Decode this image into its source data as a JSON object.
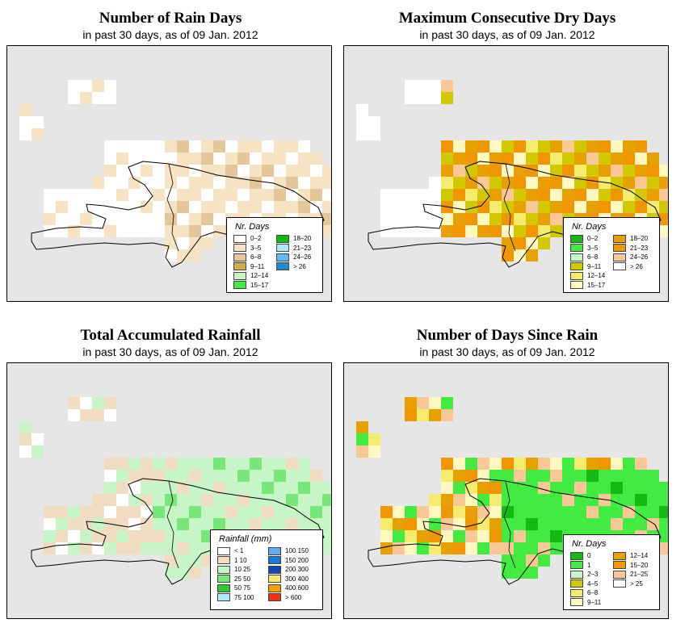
{
  "panels": [
    {
      "id": "rain-days",
      "title": "Number of Rain Days",
      "subtitle": "in past 30 days, as of  09 Jan. 2012",
      "legend_title": "Nr. Days",
      "legend": [
        {
          "label": "0–2",
          "color": "#ffffff"
        },
        {
          "label": "3–5",
          "color": "#f5e3c4"
        },
        {
          "label": "6–8",
          "color": "#e3c79b"
        },
        {
          "label": "9–11",
          "color": "#d2aa4a"
        },
        {
          "label": "12–14",
          "color": "#c8f5c8"
        },
        {
          "label": "15–17",
          "color": "#3cf03c"
        },
        {
          "label": "18–20",
          "color": "#12b912"
        },
        {
          "label": "21–23",
          "color": "#aeeaf5"
        },
        {
          "label": "24–26",
          "color": "#5fb9f0"
        },
        {
          "label": "> 26",
          "color": "#1e8ccc"
        }
      ]
    },
    {
      "id": "dry-days",
      "title": "Maximum Consecutive Dry Days",
      "subtitle": "in past 30 days, as of  09 Jan. 2012",
      "legend_title": "Nr. Days",
      "legend": [
        {
          "label": "0–2",
          "color": "#14b914"
        },
        {
          "label": "3–5",
          "color": "#41eb41"
        },
        {
          "label": "6–8",
          "color": "#c8f5c8"
        },
        {
          "label": "9–11",
          "color": "#d2c800"
        },
        {
          "label": "12–14",
          "color": "#f5eb6e"
        },
        {
          "label": "15–17",
          "color": "#fff8c0"
        },
        {
          "label": "18–20",
          "color": "#e6a000"
        },
        {
          "label": "21–23",
          "color": "#f09600"
        },
        {
          "label": "24–26",
          "color": "#fac896"
        },
        {
          "label": "> 26",
          "color": "#ffffff"
        }
      ]
    },
    {
      "id": "rainfall",
      "title": "Total Accumulated Rainfall",
      "subtitle": "in past 30 days, as of  09 Jan. 2012",
      "legend_title": "Rainfall (mm)",
      "legend": [
        {
          "label": "< 1",
          "color": "#ffffff"
        },
        {
          "label": "1   10",
          "color": "#f0dcc0"
        },
        {
          "label": "10   25",
          "color": "#c8f5c8"
        },
        {
          "label": "25   50",
          "color": "#78e678"
        },
        {
          "label": "50   75",
          "color": "#32c832"
        },
        {
          "label": "75   100",
          "color": "#aeeaf5"
        },
        {
          "label": "100   150",
          "color": "#64aaf0"
        },
        {
          "label": "150   200",
          "color": "#1e78dc"
        },
        {
          "label": "200   300",
          "color": "#1446b4"
        },
        {
          "label": "300   400",
          "color": "#fae678"
        },
        {
          "label": "400   600",
          "color": "#f5a000"
        },
        {
          "label": "> 600",
          "color": "#f03214"
        }
      ]
    },
    {
      "id": "days-since-rain",
      "title": "Number of Days Since Rain",
      "subtitle": "in past 30 days, as of  09 Jan. 2012",
      "legend_title": "Nr. Days",
      "legend": [
        {
          "label": "0",
          "color": "#14b914"
        },
        {
          "label": "1",
          "color": "#41eb41"
        },
        {
          "label": "2–3",
          "color": "#c8f5c8"
        },
        {
          "label": "4–5",
          "color": "#d2c800"
        },
        {
          "label": "6–8",
          "color": "#f5eb6e"
        },
        {
          "label": "9–11",
          "color": "#fff8c0"
        },
        {
          "label": "12–14",
          "color": "#e6a000"
        },
        {
          "label": "15–20",
          "color": "#f09600"
        },
        {
          "label": "21–25",
          "color": "#fac896"
        },
        {
          "label": "> 25",
          "color": "#ffffff"
        }
      ]
    }
  ]
}
